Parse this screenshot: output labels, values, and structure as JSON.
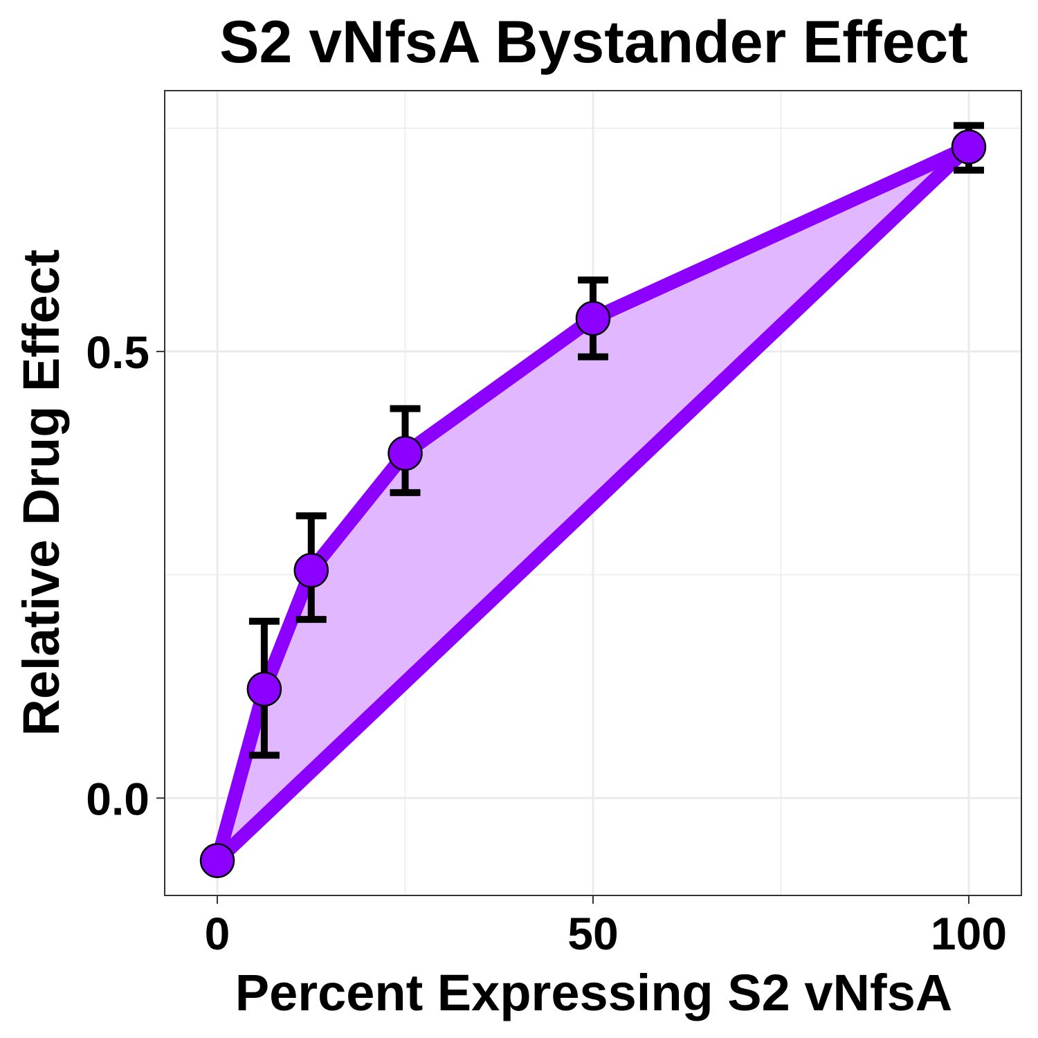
{
  "chart_data": {
    "type": "line",
    "title": "S2 vNfsA Bystander Effect",
    "xlabel": "Percent Expressing S2 vNfsA",
    "ylabel": "Relative Drug Effect",
    "xlim": [
      -7,
      107
    ],
    "ylim": [
      -0.109,
      0.792
    ],
    "x_ticks": [
      0,
      50,
      100
    ],
    "x_tick_labels": [
      "0",
      "50",
      "100"
    ],
    "y_ticks": [
      0.0,
      0.5
    ],
    "y_tick_labels": [
      "0.0",
      "0.5"
    ],
    "grid": true,
    "series": [
      {
        "x": [
          0,
          6.25,
          12.5,
          25,
          50,
          100
        ],
        "y": [
          -0.07,
          0.122,
          0.255,
          0.386,
          0.537,
          0.729
        ],
        "err_low": [
          null,
          0.048,
          0.2,
          0.342,
          0.494,
          0.703
        ],
        "err_high": [
          null,
          0.198,
          0.316,
          0.436,
          0.58,
          0.753
        ]
      }
    ],
    "reference_line": {
      "x": [
        0,
        100
      ],
      "y": [
        -0.07,
        0.729
      ]
    },
    "colors": {
      "line": "#8B00FF",
      "fill": "#E1B8FF",
      "point": "#8B00FF",
      "errorbar": "#000000",
      "grid": "#EBEBEB",
      "panel_border": "#333333"
    }
  }
}
